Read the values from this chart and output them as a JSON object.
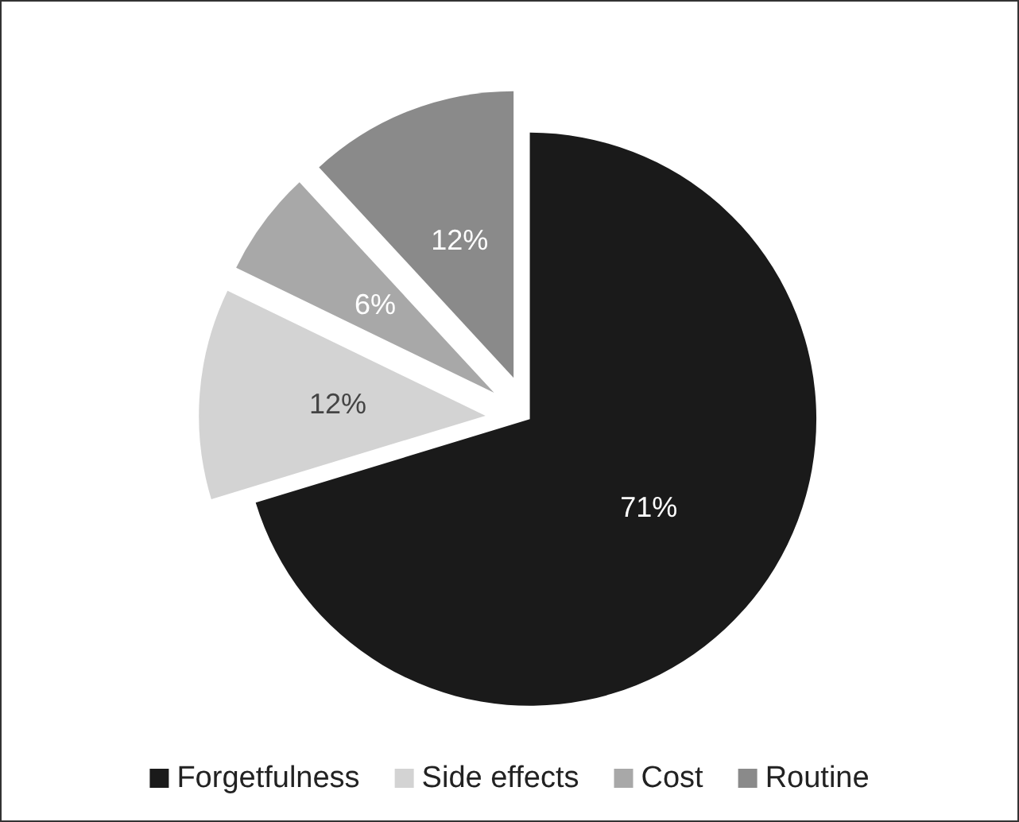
{
  "chart_data": {
    "type": "pie",
    "categories": [
      "Forgetfulness",
      "Side effects",
      "Cost",
      "Routine"
    ],
    "values": [
      71,
      12,
      6,
      12
    ],
    "value_labels": [
      "71%",
      "12%",
      "6%",
      "12%"
    ],
    "colors": [
      "#1a1a1a",
      "#d3d3d3",
      "#a8a8a8",
      "#8a8a8a"
    ],
    "legend": "bottom"
  }
}
